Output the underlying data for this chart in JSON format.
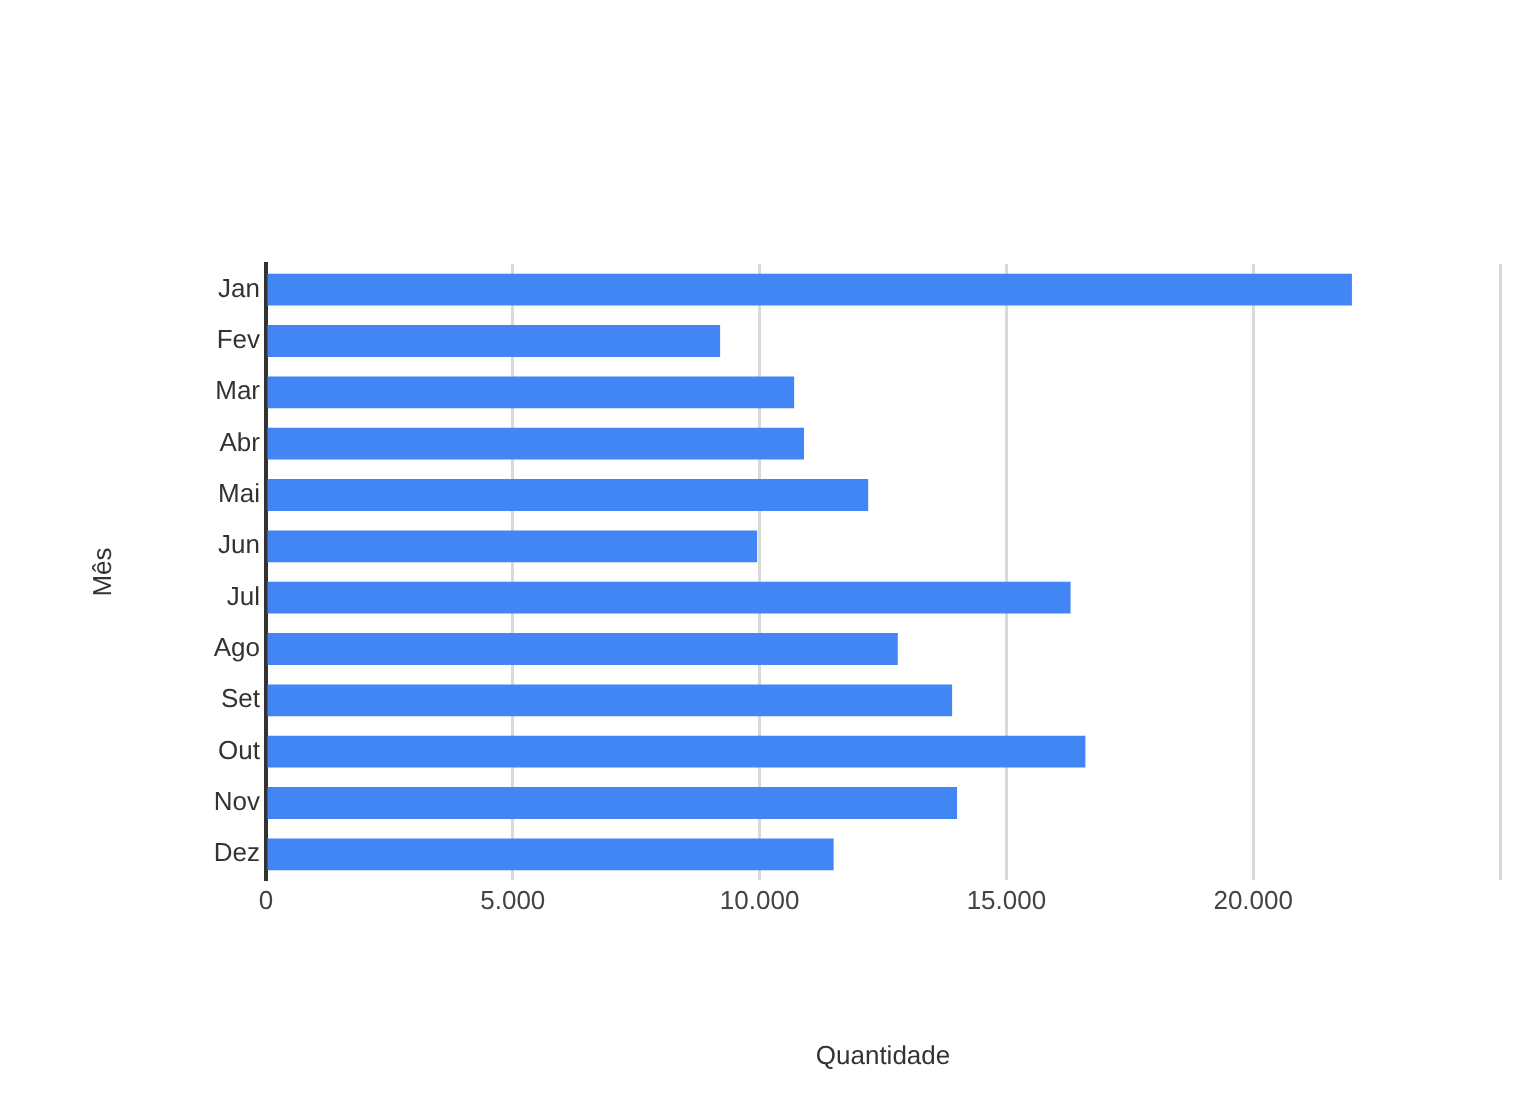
{
  "chart_data": {
    "type": "bar",
    "orientation": "horizontal",
    "xlabel": "Quantidade",
    "ylabel": "Mês",
    "categories": [
      "Jan",
      "Fev",
      "Mar",
      "Abr",
      "Mai",
      "Jun",
      "Jul",
      "Ago",
      "Set",
      "Out",
      "Nov",
      "Dez"
    ],
    "values": [
      22000,
      9200,
      10700,
      10900,
      12200,
      9950,
      16300,
      12800,
      13900,
      16600,
      14000,
      11500
    ],
    "color": "#4285f4",
    "xlim": [
      0,
      25000
    ],
    "xticks": [
      0,
      {
        "value": 5000,
        "label": "5.000"
      },
      {
        "value": 10000,
        "label": "10.000"
      },
      {
        "value": 15000,
        "label": "15.000"
      },
      {
        "value": 20000,
        "label": "20.000"
      },
      {
        "value": 25000,
        "label": null
      }
    ],
    "grid": "x",
    "legend": false
  }
}
